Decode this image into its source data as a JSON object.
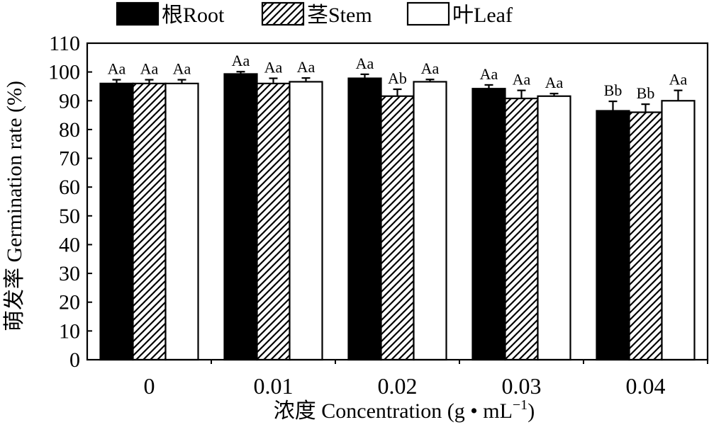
{
  "chart_data": {
    "type": "bar",
    "xlabel": "浓度 Concentration (g·mL⁻¹)",
    "xlabel_parts": {
      "main": "浓度 Concentration (g • mL",
      "sup": "−1",
      "close": ")"
    },
    "ylabel": "萌发率 Germination rate (%)",
    "categories": [
      "0",
      "0.01",
      "0.02",
      "0.03",
      "0.04"
    ],
    "ylim": [
      0,
      110
    ],
    "yticks": [
      0,
      10,
      20,
      30,
      40,
      50,
      60,
      70,
      80,
      90,
      100,
      110
    ],
    "grid": false,
    "legend_position": "top",
    "series": [
      {
        "name": "根Root",
        "pattern": "solid-black",
        "values": [
          96,
          99.3,
          97.8,
          94.2,
          86.5
        ],
        "errors": [
          1.3,
          0.8,
          1.4,
          1.3,
          3.3
        ],
        "labels": [
          "Aa",
          "Aa",
          "Aa",
          "Aa",
          "Bb"
        ]
      },
      {
        "name": "茎Stem",
        "pattern": "diagonal-hatch",
        "values": [
          96,
          96,
          91.6,
          90.8,
          86
        ],
        "errors": [
          1.3,
          1.8,
          2.4,
          2.8,
          2.8
        ],
        "labels": [
          "Aa",
          "Aa",
          "Ab",
          "Aa",
          "Bb"
        ]
      },
      {
        "name": "叶Leaf",
        "pattern": "white",
        "values": [
          96,
          96.6,
          96.6,
          91.6,
          90
        ],
        "errors": [
          1.3,
          1.3,
          0.8,
          0.9,
          3.6
        ],
        "labels": [
          "Aa",
          "Aa",
          "Aa",
          "Aa",
          "Aa"
        ]
      }
    ]
  }
}
